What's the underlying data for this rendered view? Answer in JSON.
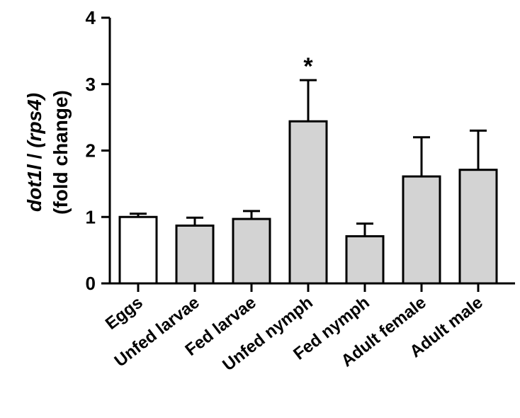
{
  "chart_data": {
    "type": "bar",
    "title": "",
    "xlabel": "",
    "ylabel_lines": [
      [
        {
          "text": "dot1l",
          "italic": true
        },
        {
          "text": " / ",
          "italic": false
        },
        {
          "text": "(rps4)",
          "italic": true
        }
      ],
      [
        {
          "text": "(fold change)",
          "italic": false
        }
      ]
    ],
    "ylim": [
      0,
      4
    ],
    "yticks": [
      0,
      1,
      2,
      3,
      4
    ],
    "grid": false,
    "categories": [
      "Eggs",
      "Unfed larvae",
      "Fed larvae",
      "Unfed nymph",
      "Fed nymph",
      "Adult female",
      "Adult male"
    ],
    "values": [
      1.0,
      0.87,
      0.97,
      2.44,
      0.71,
      1.61,
      1.71
    ],
    "error_upper": [
      0.05,
      0.12,
      0.12,
      0.62,
      0.19,
      0.59,
      0.59
    ],
    "annotations": [
      {
        "category": "Unfed nymph",
        "text": "*"
      }
    ],
    "colors": {
      "first_bar": "#ffffff",
      "bars": "#d3d3d3",
      "outline": "#000000"
    }
  }
}
